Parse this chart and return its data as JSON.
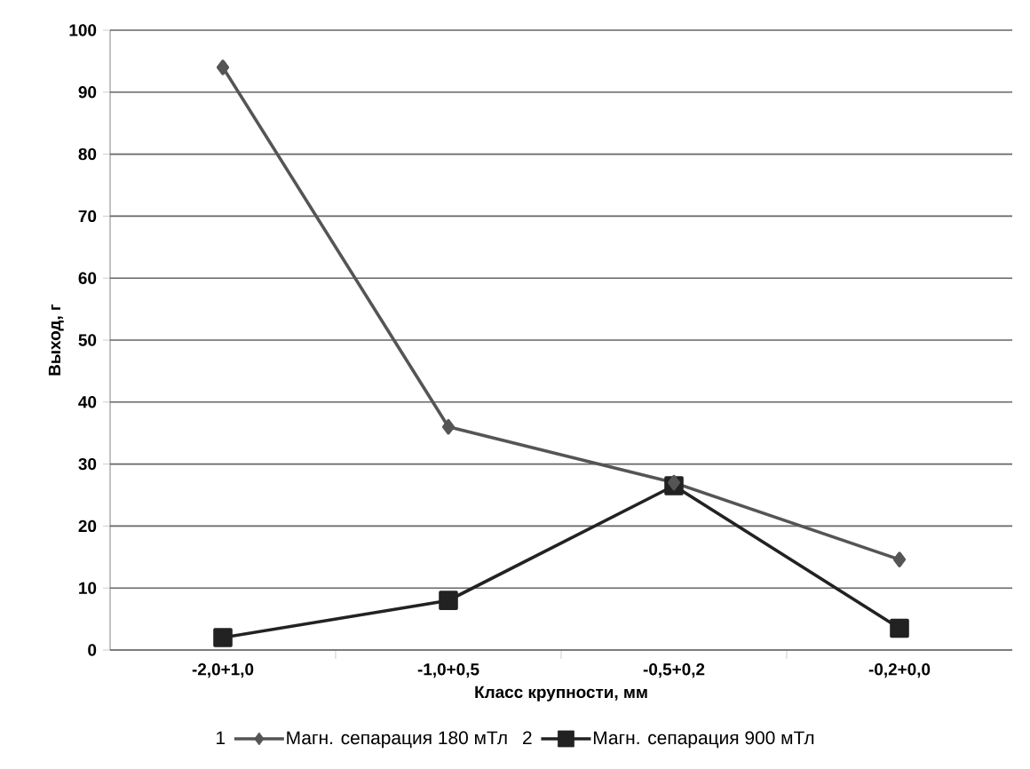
{
  "chart_data": {
    "type": "line",
    "xlabel": "Класс крупности, мм",
    "ylabel": "Выход, г",
    "categories": [
      "-2,0+1,0",
      "-1,0+0,5",
      "-0,5+0,2",
      "-0,2+0,0"
    ],
    "series": [
      {
        "name": "Магн. сепарация 180 мТл",
        "color": "#555555",
        "marker": "diamond",
        "values": [
          94,
          36,
          27,
          14.6
        ]
      },
      {
        "name": "Магн. сепарация 900 мТл",
        "color": "#222222",
        "marker": "square",
        "values": [
          2,
          8,
          26.5,
          3.5
        ]
      }
    ],
    "annotations": [
      "1",
      "2"
    ],
    "ylim": [
      0,
      100
    ],
    "yticks": [
      0,
      10,
      20,
      30,
      40,
      50,
      60,
      70,
      80,
      90,
      100
    ],
    "grid": "y",
    "legend": "bottom"
  }
}
